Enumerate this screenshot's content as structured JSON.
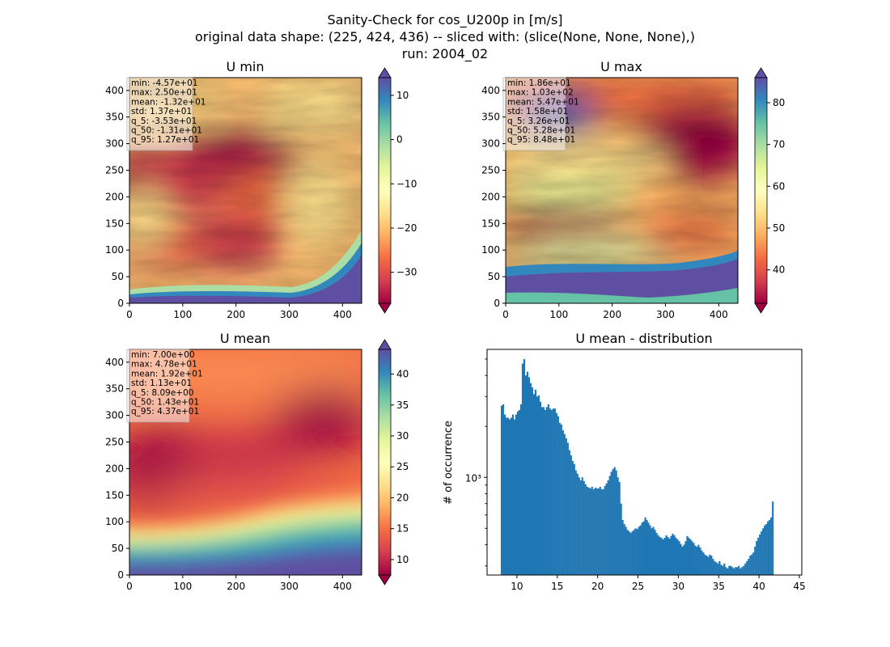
{
  "figure": {
    "title_lines": [
      "Sanity-Check for cos_U200p in [m/s]",
      "original data shape: (225, 424, 436) -- sliced with: (slice(None, None, None),)",
      "run: 2004_02"
    ]
  },
  "chart_data": [
    {
      "type": "heatmap",
      "title": "U min",
      "colormap": "Spectral",
      "xlim": [
        0,
        436
      ],
      "ylim": [
        0,
        424
      ],
      "xticks": [
        0,
        100,
        200,
        300,
        400
      ],
      "yticks": [
        0,
        50,
        100,
        150,
        200,
        250,
        300,
        350,
        400
      ],
      "colorbar": {
        "range": [
          -37,
          14
        ],
        "ticks": [
          10,
          0,
          -10,
          -20,
          -30
        ],
        "tick_labels": [
          "10",
          "0",
          "−10",
          "−20",
          "−30"
        ]
      },
      "stats": [
        "min: -4.57e+01",
        "max: 2.50e+01",
        "mean: -1.32e+01",
        "std: 1.37e+01",
        "q_5: -3.53e+01",
        "q_50: -1.31e+01",
        "q_95: 1.27e+01"
      ]
    },
    {
      "type": "heatmap",
      "title": "U max",
      "colormap": "Spectral",
      "xlim": [
        0,
        436
      ],
      "ylim": [
        0,
        424
      ],
      "xticks": [
        0,
        100,
        200,
        300,
        400
      ],
      "yticks": [
        0,
        50,
        100,
        150,
        200,
        250,
        300,
        350,
        400
      ],
      "colorbar": {
        "range": [
          32,
          86
        ],
        "ticks": [
          80,
          70,
          60,
          50,
          40
        ],
        "tick_labels": [
          "80",
          "70",
          "60",
          "50",
          "40"
        ]
      },
      "stats": [
        "min: 1.86e+01",
        "max: 1.03e+02",
        "mean: 5.47e+01",
        "std: 1.58e+01",
        "q_5: 3.26e+01",
        "q_50: 5.28e+01",
        "q_95: 8.48e+01"
      ]
    },
    {
      "type": "heatmap",
      "title": "U mean",
      "colormap": "Spectral",
      "xlim": [
        0,
        436
      ],
      "ylim": [
        0,
        424
      ],
      "xticks": [
        0,
        100,
        200,
        300,
        400
      ],
      "yticks": [
        0,
        50,
        100,
        150,
        200,
        250,
        300,
        350,
        400
      ],
      "colorbar": {
        "range": [
          7.5,
          44
        ],
        "ticks": [
          40,
          35,
          30,
          25,
          20,
          15,
          10
        ],
        "tick_labels": [
          "40",
          "35",
          "30",
          "25",
          "20",
          "15",
          "10"
        ]
      },
      "stats": [
        "min: 7.00e+00",
        "max: 4.78e+01",
        "mean: 1.92e+01",
        "std: 1.13e+01",
        "q_5: 8.09e+00",
        "q_50: 1.43e+01",
        "q_95: 4.37e+01"
      ]
    },
    {
      "type": "bar",
      "title": "U mean - distribution",
      "ylabel": "# of occurrence",
      "xlabel": "",
      "yscale": "log",
      "xlim": [
        6.3,
        45.3
      ],
      "ylim": [
        265,
        5700
      ],
      "xticks": [
        10,
        15,
        20,
        25,
        30,
        35,
        40,
        45
      ],
      "ytick_major": [
        {
          "value": 1000,
          "label": "10³"
        }
      ],
      "ytick_minor": [
        300,
        400,
        500,
        600,
        700,
        800,
        900,
        2000,
        3000,
        4000,
        5000
      ],
      "color": "#1f77b4",
      "bin_start": 8.0,
      "bin_width": 0.2,
      "counts": [
        2650,
        2700,
        2350,
        2250,
        2250,
        2200,
        2250,
        2350,
        2200,
        2350,
        2450,
        2500,
        2700,
        4700,
        5000,
        4000,
        4200,
        3900,
        3600,
        3400,
        3100,
        3300,
        3000,
        3050,
        2800,
        2600,
        2600,
        2500,
        2600,
        2700,
        2550,
        2500,
        2550,
        2550,
        2400,
        2300,
        2100,
        2050,
        1900,
        1800,
        1700,
        1600,
        1450,
        1350,
        1250,
        1200,
        1100,
        1050,
        1000,
        960,
        1000,
        950,
        910,
        880,
        870,
        860,
        880,
        850,
        870,
        860,
        860,
        880,
        850,
        850,
        890,
        920,
        960,
        1020,
        1080,
        1120,
        1150,
        1100,
        1000,
        940,
        700,
        560,
        530,
        510,
        490,
        480,
        470,
        480,
        490,
        500,
        495,
        510,
        520,
        540,
        550,
        580,
        560,
        540,
        520,
        500,
        510,
        490,
        470,
        455,
        445,
        440,
        430,
        440,
        455,
        445,
        435,
        450,
        465,
        455,
        440,
        430,
        420,
        405,
        390,
        400,
        420,
        450,
        440,
        430,
        420,
        410,
        395,
        390,
        400,
        385,
        370,
        360,
        350,
        345,
        340,
        350,
        345,
        330,
        320,
        315,
        310,
        320,
        305,
        300,
        310,
        295,
        290,
        300,
        300,
        295,
        290,
        295,
        295,
        300,
        290,
        295,
        300,
        310,
        320,
        330,
        345,
        350,
        360,
        390,
        420,
        440,
        460,
        480,
        500,
        520,
        530,
        550,
        560,
        580,
        720
      ]
    }
  ]
}
